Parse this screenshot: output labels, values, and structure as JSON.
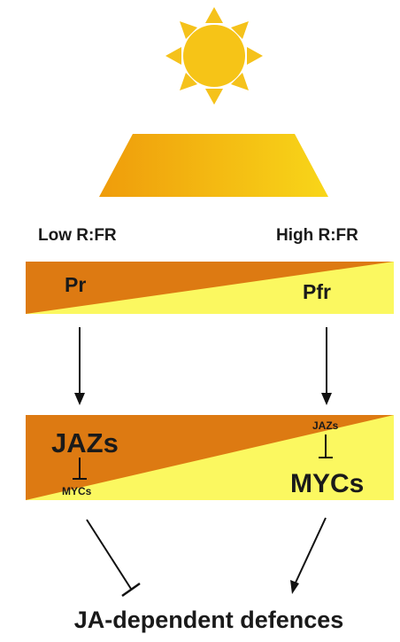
{
  "labels": {
    "low_rfr": "Low R:FR",
    "high_rfr": "High R:FR",
    "pr": "Pr",
    "pfr": "Pfr",
    "jazs_large": "JAZs",
    "mycs_small": "MYCs",
    "jazs_small": "JAZs",
    "mycs_large": "MYCs",
    "outcome": "JA-dependent defences"
  },
  "colors": {
    "sun": "#f6c417",
    "sun_rays": "#f5c21b",
    "beam_left": "#ef9e0b",
    "beam_right": "#f7d31a",
    "orange": "#dd7a12",
    "yellow": "#fbf860",
    "text_dark": "#1a1a1a",
    "arrow": "#111111"
  }
}
